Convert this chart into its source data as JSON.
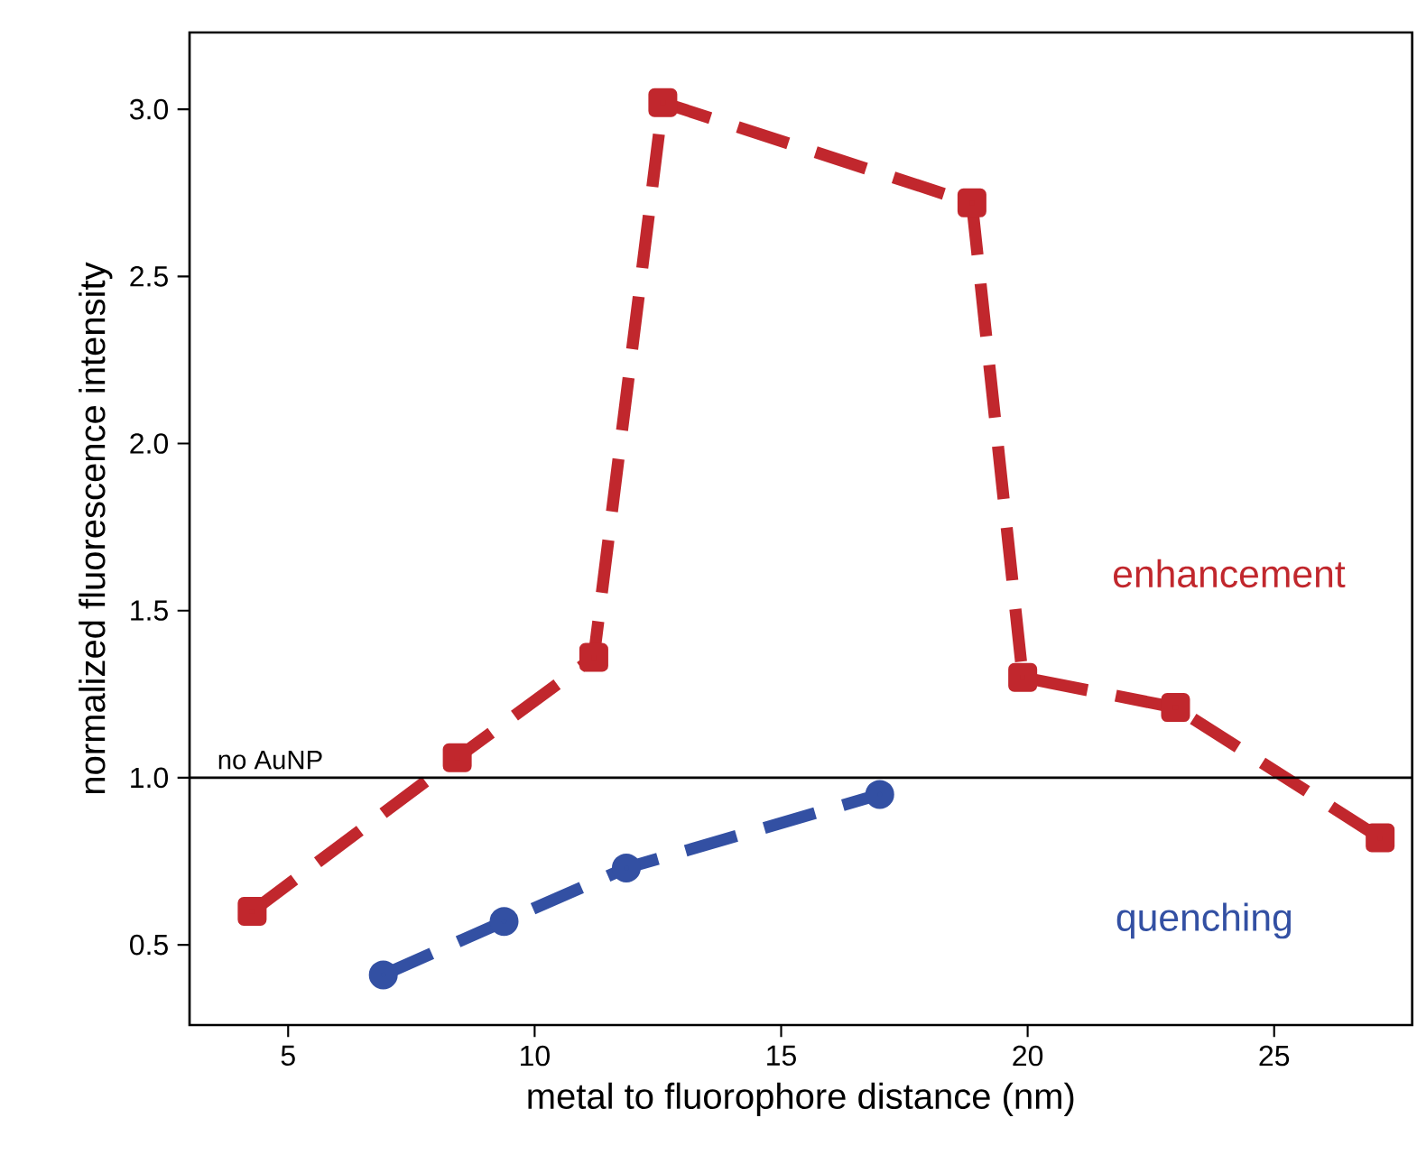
{
  "chart_data": {
    "type": "line",
    "xlabel": "metal to fluorophore distance (nm)",
    "ylabel": "normalized fluorescence intensity",
    "xlim": [
      3.0,
      27.8
    ],
    "ylim": [
      0.26,
      3.23
    ],
    "xticks": [
      5,
      10,
      15,
      20,
      25
    ],
    "yticks": [
      0.5,
      {
        "value": 1,
        "label": "1.0"
      },
      1.5,
      {
        "value": 2,
        "label": "2.0"
      },
      2.5,
      {
        "value": 3,
        "label": "3.0"
      }
    ],
    "line_style": "dashed",
    "grid": false,
    "series": [
      {
        "name": "enhancement",
        "color": "#c1272d",
        "marker": "square",
        "x": [
          4.27,
          8.43,
          11.2,
          12.6,
          18.87,
          19.9,
          23.0,
          27.15
        ],
        "values": [
          0.6,
          1.06,
          1.36,
          3.02,
          2.72,
          1.3,
          1.21,
          0.82
        ]
      },
      {
        "name": "quenching",
        "color": "#3350a3",
        "marker": "circle",
        "x": [
          6.93,
          9.38,
          11.86,
          17.0
        ],
        "values": [
          0.41,
          0.57,
          0.73,
          0.95
        ]
      }
    ],
    "ref_lines": [
      {
        "axis": "y",
        "value": 1,
        "label": "no AuNP",
        "color": "#000000"
      }
    ]
  }
}
